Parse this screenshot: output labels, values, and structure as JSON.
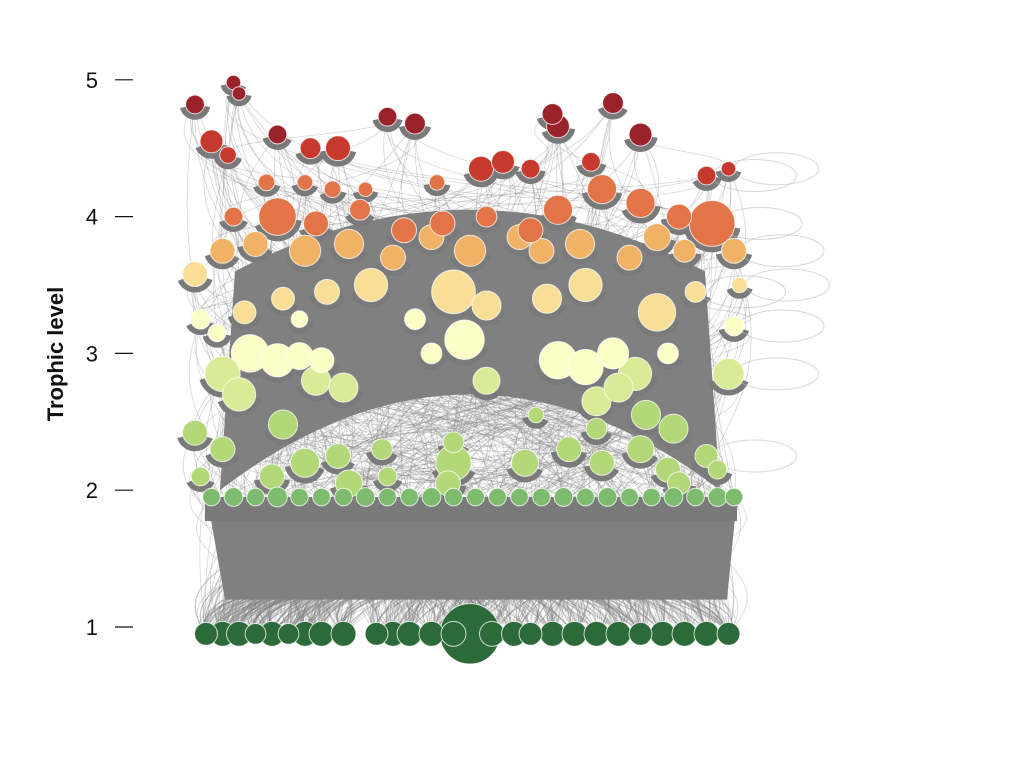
{
  "chart_data": {
    "type": "scatter",
    "title": "",
    "xlabel": "",
    "ylabel": "Trophic level",
    "ylim": [
      0.6,
      5.3
    ],
    "y_ticks": [
      1,
      2,
      3,
      4,
      5
    ],
    "y_tick_labels": [
      "1",
      "2",
      "3",
      "4",
      "5"
    ],
    "grid": false,
    "legend": "none",
    "description_encoding": "Food-web nodes: vertical position = trophic level, circle size = relative biomass, color = trophic level band; grey curves = feeding links.",
    "color_scale": [
      {
        "min_level": 0.5,
        "max_level": 1.5,
        "color": "#2d6a3a"
      },
      {
        "min_level": 1.5,
        "max_level": 2.05,
        "color": "#7dbb6e"
      },
      {
        "min_level": 2.05,
        "max_level": 2.6,
        "color": "#b3d877"
      },
      {
        "min_level": 2.6,
        "max_level": 2.9,
        "color": "#d9eb96"
      },
      {
        "min_level": 2.9,
        "max_level": 3.3,
        "color": "#fdfdc8"
      },
      {
        "min_level": 3.3,
        "max_level": 3.65,
        "color": "#f8de97"
      },
      {
        "min_level": 3.65,
        "max_level": 3.9,
        "color": "#f2b266"
      },
      {
        "min_level": 3.9,
        "max_level": 4.3,
        "color": "#e27448"
      },
      {
        "min_level": 4.3,
        "max_level": 4.6,
        "color": "#c63a2d"
      },
      {
        "min_level": 4.6,
        "max_level": 5.5,
        "color": "#9a2229"
      }
    ],
    "nodes": [
      {
        "x": 0.02,
        "y": 0.95,
        "size": 2.2
      },
      {
        "x": 0.05,
        "y": 0.95,
        "size": 2.4
      },
      {
        "x": 0.08,
        "y": 0.95,
        "size": 2.4
      },
      {
        "x": 0.11,
        "y": 0.95,
        "size": 2.0
      },
      {
        "x": 0.14,
        "y": 0.95,
        "size": 2.4
      },
      {
        "x": 0.17,
        "y": 0.95,
        "size": 2.0
      },
      {
        "x": 0.2,
        "y": 0.95,
        "size": 2.4
      },
      {
        "x": 0.23,
        "y": 0.95,
        "size": 2.4
      },
      {
        "x": 0.27,
        "y": 0.95,
        "size": 2.4
      },
      {
        "x": 0.33,
        "y": 0.95,
        "size": 2.2
      },
      {
        "x": 0.36,
        "y": 0.95,
        "size": 2.4
      },
      {
        "x": 0.39,
        "y": 0.95,
        "size": 2.4
      },
      {
        "x": 0.43,
        "y": 0.95,
        "size": 2.4
      },
      {
        "x": 0.47,
        "y": 0.95,
        "size": 2.4
      },
      {
        "x": 0.5,
        "y": 0.95,
        "size": 5.8
      },
      {
        "x": 0.54,
        "y": 0.95,
        "size": 2.4
      },
      {
        "x": 0.58,
        "y": 0.95,
        "size": 2.4
      },
      {
        "x": 0.61,
        "y": 0.95,
        "size": 2.2
      },
      {
        "x": 0.65,
        "y": 0.95,
        "size": 2.4
      },
      {
        "x": 0.69,
        "y": 0.95,
        "size": 2.4
      },
      {
        "x": 0.73,
        "y": 0.95,
        "size": 2.4
      },
      {
        "x": 0.77,
        "y": 0.95,
        "size": 2.4
      },
      {
        "x": 0.81,
        "y": 0.95,
        "size": 2.2
      },
      {
        "x": 0.85,
        "y": 0.95,
        "size": 2.4
      },
      {
        "x": 0.89,
        "y": 0.95,
        "size": 2.4
      },
      {
        "x": 0.93,
        "y": 0.95,
        "size": 2.4
      },
      {
        "x": 0.97,
        "y": 0.95,
        "size": 2.2
      },
      {
        "x": 0.03,
        "y": 1.95,
        "size": 1.7
      },
      {
        "x": 0.07,
        "y": 1.95,
        "size": 1.8
      },
      {
        "x": 0.11,
        "y": 1.95,
        "size": 1.7
      },
      {
        "x": 0.15,
        "y": 1.95,
        "size": 1.9
      },
      {
        "x": 0.19,
        "y": 1.95,
        "size": 1.7
      },
      {
        "x": 0.23,
        "y": 1.95,
        "size": 1.7
      },
      {
        "x": 0.27,
        "y": 1.95,
        "size": 1.7
      },
      {
        "x": 0.31,
        "y": 1.95,
        "size": 1.8
      },
      {
        "x": 0.35,
        "y": 1.95,
        "size": 1.7
      },
      {
        "x": 0.39,
        "y": 1.95,
        "size": 1.7
      },
      {
        "x": 0.43,
        "y": 1.95,
        "size": 1.8
      },
      {
        "x": 0.47,
        "y": 1.95,
        "size": 1.7
      },
      {
        "x": 0.51,
        "y": 1.95,
        "size": 1.7
      },
      {
        "x": 0.55,
        "y": 1.95,
        "size": 1.7
      },
      {
        "x": 0.59,
        "y": 1.95,
        "size": 1.7
      },
      {
        "x": 0.63,
        "y": 1.95,
        "size": 1.7
      },
      {
        "x": 0.67,
        "y": 1.95,
        "size": 1.8
      },
      {
        "x": 0.71,
        "y": 1.95,
        "size": 1.7
      },
      {
        "x": 0.75,
        "y": 1.95,
        "size": 1.8
      },
      {
        "x": 0.79,
        "y": 1.95,
        "size": 1.7
      },
      {
        "x": 0.83,
        "y": 1.95,
        "size": 1.7
      },
      {
        "x": 0.87,
        "y": 1.95,
        "size": 1.8
      },
      {
        "x": 0.91,
        "y": 1.95,
        "size": 1.7
      },
      {
        "x": 0.95,
        "y": 1.95,
        "size": 1.8
      },
      {
        "x": 0.98,
        "y": 1.95,
        "size": 1.7
      },
      {
        "x": 0.01,
        "y": 2.1,
        "size": 1.8
      },
      {
        "x": 0.28,
        "y": 2.05,
        "size": 2.6
      },
      {
        "x": 0.35,
        "y": 2.1,
        "size": 1.8
      },
      {
        "x": 0.46,
        "y": 2.05,
        "size": 2.4
      },
      {
        "x": 0.88,
        "y": 2.05,
        "size": 2.2
      },
      {
        "x": 0.05,
        "y": 2.3,
        "size": 2.4
      },
      {
        "x": 0.14,
        "y": 2.1,
        "size": 2.4
      },
      {
        "x": 0.2,
        "y": 2.2,
        "size": 2.8
      },
      {
        "x": 0.26,
        "y": 2.25,
        "size": 2.4
      },
      {
        "x": 0.34,
        "y": 2.3,
        "size": 2.0
      },
      {
        "x": 0.47,
        "y": 2.2,
        "size": 3.4
      },
      {
        "x": 0.47,
        "y": 2.35,
        "size": 2.0
      },
      {
        "x": 0.6,
        "y": 2.2,
        "size": 2.6
      },
      {
        "x": 0.68,
        "y": 2.3,
        "size": 2.4
      },
      {
        "x": 0.74,
        "y": 2.2,
        "size": 2.4
      },
      {
        "x": 0.81,
        "y": 2.3,
        "size": 2.6
      },
      {
        "x": 0.86,
        "y": 2.15,
        "size": 2.4
      },
      {
        "x": 0.93,
        "y": 2.25,
        "size": 2.2
      },
      {
        "x": 0.95,
        "y": 2.15,
        "size": 1.8
      },
      {
        "x": 0.73,
        "y": 2.45,
        "size": 2.0
      },
      {
        "x": 0.62,
        "y": 2.55,
        "size": 1.5
      },
      {
        "x": 0.0,
        "y": 2.42,
        "size": 2.4
      },
      {
        "x": 0.08,
        "y": 2.7,
        "size": 3.2
      },
      {
        "x": 0.16,
        "y": 2.48,
        "size": 2.8
      },
      {
        "x": 0.22,
        "y": 2.8,
        "size": 2.8
      },
      {
        "x": 0.27,
        "y": 2.75,
        "size": 2.8
      },
      {
        "x": 0.73,
        "y": 2.65,
        "size": 2.8
      },
      {
        "x": 0.77,
        "y": 2.75,
        "size": 2.8
      },
      {
        "x": 0.87,
        "y": 2.45,
        "size": 2.8
      },
      {
        "x": 0.82,
        "y": 2.55,
        "size": 2.8
      },
      {
        "x": 0.05,
        "y": 2.85,
        "size": 3.4
      },
      {
        "x": 0.1,
        "y": 3.0,
        "size": 3.6
      },
      {
        "x": 0.15,
        "y": 2.95,
        "size": 3.2
      },
      {
        "x": 0.19,
        "y": 2.98,
        "size": 2.6
      },
      {
        "x": 0.23,
        "y": 2.95,
        "size": 2.4
      },
      {
        "x": 0.43,
        "y": 3.0,
        "size": 2.0
      },
      {
        "x": 0.49,
        "y": 3.1,
        "size": 3.8
      },
      {
        "x": 0.53,
        "y": 2.8,
        "size": 2.6
      },
      {
        "x": 0.66,
        "y": 2.95,
        "size": 3.6
      },
      {
        "x": 0.71,
        "y": 2.9,
        "size": 3.4
      },
      {
        "x": 0.76,
        "y": 3.0,
        "size": 3.0
      },
      {
        "x": 0.8,
        "y": 2.85,
        "size": 3.2
      },
      {
        "x": 0.97,
        "y": 2.85,
        "size": 3.0
      },
      {
        "x": 0.86,
        "y": 3.0,
        "size": 2.0
      },
      {
        "x": 0.01,
        "y": 3.25,
        "size": 1.9
      },
      {
        "x": 0.04,
        "y": 3.15,
        "size": 1.7
      },
      {
        "x": 0.09,
        "y": 3.3,
        "size": 2.2
      },
      {
        "x": 0.16,
        "y": 3.4,
        "size": 2.2
      },
      {
        "x": 0.24,
        "y": 3.45,
        "size": 2.4
      },
      {
        "x": 0.32,
        "y": 3.5,
        "size": 3.2
      },
      {
        "x": 0.4,
        "y": 3.25,
        "size": 2.0
      },
      {
        "x": 0.47,
        "y": 3.45,
        "size": 4.2
      },
      {
        "x": 0.53,
        "y": 3.35,
        "size": 2.8
      },
      {
        "x": 0.64,
        "y": 3.4,
        "size": 2.8
      },
      {
        "x": 0.71,
        "y": 3.5,
        "size": 3.2
      },
      {
        "x": 0.84,
        "y": 3.3,
        "size": 3.6
      },
      {
        "x": 0.91,
        "y": 3.45,
        "size": 2.0
      },
      {
        "x": 0.98,
        "y": 3.2,
        "size": 1.9
      },
      {
        "x": 0.99,
        "y": 3.5,
        "size": 1.5
      },
      {
        "x": 0.19,
        "y": 3.25,
        "size": 1.6
      },
      {
        "x": 0.0,
        "y": 3.58,
        "size": 2.4
      },
      {
        "x": 0.05,
        "y": 3.75,
        "size": 2.4
      },
      {
        "x": 0.11,
        "y": 3.8,
        "size": 2.4
      },
      {
        "x": 0.2,
        "y": 3.75,
        "size": 3.0
      },
      {
        "x": 0.28,
        "y": 3.8,
        "size": 2.8
      },
      {
        "x": 0.36,
        "y": 3.7,
        "size": 2.4
      },
      {
        "x": 0.43,
        "y": 3.85,
        "size": 2.4
      },
      {
        "x": 0.5,
        "y": 3.75,
        "size": 3.0
      },
      {
        "x": 0.59,
        "y": 3.85,
        "size": 2.4
      },
      {
        "x": 0.63,
        "y": 3.75,
        "size": 2.4
      },
      {
        "x": 0.7,
        "y": 3.8,
        "size": 2.8
      },
      {
        "x": 0.79,
        "y": 3.7,
        "size": 2.4
      },
      {
        "x": 0.84,
        "y": 3.85,
        "size": 2.6
      },
      {
        "x": 0.89,
        "y": 3.75,
        "size": 2.2
      },
      {
        "x": 0.98,
        "y": 3.75,
        "size": 2.4
      },
      {
        "x": 0.15,
        "y": 4.0,
        "size": 3.6
      },
      {
        "x": 0.07,
        "y": 4.0,
        "size": 1.8
      },
      {
        "x": 0.22,
        "y": 3.95,
        "size": 2.4
      },
      {
        "x": 0.3,
        "y": 4.05,
        "size": 2.0
      },
      {
        "x": 0.38,
        "y": 3.9,
        "size": 2.4
      },
      {
        "x": 0.45,
        "y": 3.95,
        "size": 2.4
      },
      {
        "x": 0.53,
        "y": 4.0,
        "size": 2.0
      },
      {
        "x": 0.61,
        "y": 3.9,
        "size": 2.4
      },
      {
        "x": 0.66,
        "y": 4.05,
        "size": 2.8
      },
      {
        "x": 0.74,
        "y": 4.2,
        "size": 2.8
      },
      {
        "x": 0.81,
        "y": 4.1,
        "size": 2.8
      },
      {
        "x": 0.88,
        "y": 4.0,
        "size": 2.4
      },
      {
        "x": 0.94,
        "y": 3.95,
        "size": 4.4
      },
      {
        "x": 0.13,
        "y": 4.25,
        "size": 1.6
      },
      {
        "x": 0.2,
        "y": 4.25,
        "size": 1.5
      },
      {
        "x": 0.25,
        "y": 4.2,
        "size": 1.6
      },
      {
        "x": 0.31,
        "y": 4.2,
        "size": 1.4
      },
      {
        "x": 0.44,
        "y": 4.25,
        "size": 1.5
      },
      {
        "x": 0.52,
        "y": 4.35,
        "size": 2.4
      },
      {
        "x": 0.56,
        "y": 4.4,
        "size": 2.2
      },
      {
        "x": 0.61,
        "y": 4.35,
        "size": 1.8
      },
      {
        "x": 0.72,
        "y": 4.4,
        "size": 1.8
      },
      {
        "x": 0.93,
        "y": 4.3,
        "size": 1.8
      },
      {
        "x": 0.97,
        "y": 4.35,
        "size": 1.4
      },
      {
        "x": 0.06,
        "y": 4.45,
        "size": 1.6
      },
      {
        "x": 0.03,
        "y": 4.55,
        "size": 2.2
      },
      {
        "x": 0.21,
        "y": 4.5,
        "size": 2.0
      },
      {
        "x": 0.26,
        "y": 4.5,
        "size": 2.4
      },
      {
        "x": 0.15,
        "y": 4.6,
        "size": 1.8
      },
      {
        "x": 0.81,
        "y": 4.6,
        "size": 2.2
      },
      {
        "x": 0.0,
        "y": 4.82,
        "size": 1.8
      },
      {
        "x": 0.07,
        "y": 4.98,
        "size": 1.4
      },
      {
        "x": 0.08,
        "y": 4.9,
        "size": 1.3
      },
      {
        "x": 0.35,
        "y": 4.73,
        "size": 1.8
      },
      {
        "x": 0.4,
        "y": 4.68,
        "size": 2.0
      },
      {
        "x": 0.65,
        "y": 4.75,
        "size": 2.0
      },
      {
        "x": 0.66,
        "y": 4.66,
        "size": 2.2
      },
      {
        "x": 0.76,
        "y": 4.83,
        "size": 2.0
      }
    ]
  }
}
